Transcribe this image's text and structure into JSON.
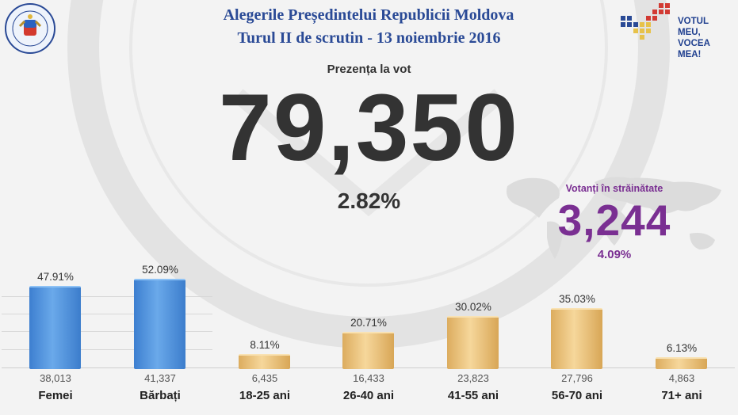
{
  "header": {
    "title_line1": "Alegerile Președintelui Republicii Moldova",
    "title_line2": "Turul II de scrutin - 13 noiembrie 2016",
    "logo_line1": "VOTUL MEU,",
    "logo_line2": "VOCEA MEA!",
    "seal_icon": "cec-seal-icon",
    "logo_icon": "votul-meu-logo-icon"
  },
  "turnout": {
    "label": "Prezența la vot",
    "number": "79,350",
    "percent": "2.82%"
  },
  "abroad": {
    "label": "Votanți în străinătate",
    "number": "3,244",
    "percent": "4.09%",
    "map_icon": "world-map-icon"
  },
  "colors": {
    "title": "#2a4a96",
    "abroad": "#7a2f92",
    "gender_bar": "#4a8ad8",
    "age_bar": "#efc17c",
    "text": "#333333"
  },
  "chart_data": {
    "type": "bar",
    "categories": [
      "Femei",
      "Bărbați",
      "18-25 ani",
      "26-40 ani",
      "41-55 ani",
      "56-70 ani",
      "71+ ani"
    ],
    "percent_labels": [
      "47.91%",
      "52.09%",
      "8.11%",
      "20.71%",
      "30.02%",
      "35.03%",
      "6.13%"
    ],
    "count_labels": [
      "38,013",
      "41,337",
      "6,435",
      "16,433",
      "23,823",
      "27,796",
      "4,863"
    ],
    "series": [
      {
        "values": [
          47.91,
          52.09,
          8.11,
          20.71,
          30.02,
          35.03,
          6.13
        ]
      }
    ],
    "groups": [
      "gender",
      "gender",
      "age",
      "age",
      "age",
      "age",
      "age"
    ],
    "grid": true
  }
}
